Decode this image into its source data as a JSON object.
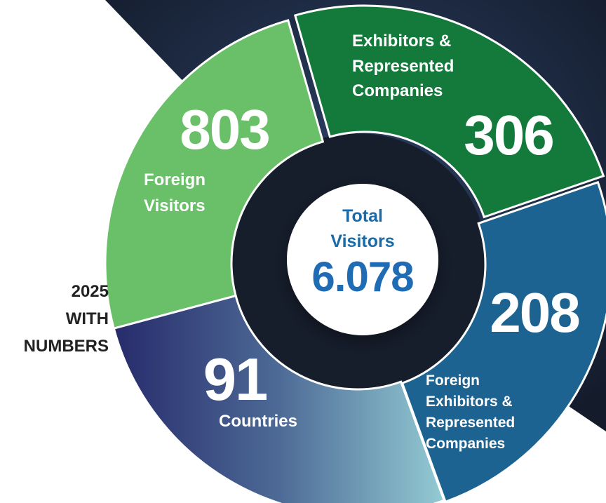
{
  "side_label": [
    "2025",
    "WITH",
    "NUMBERS"
  ],
  "center": {
    "title": [
      "Total",
      "Visitors"
    ],
    "value": "6.078"
  },
  "segments": [
    {
      "value": "803",
      "label": [
        "Foreign",
        "Visitors"
      ]
    },
    {
      "value": "306",
      "label": [
        "Exhibitors &",
        "Represented",
        "Companies"
      ]
    },
    {
      "value": "208",
      "label": [
        "Foreign",
        "Exhibitors &",
        "Represented",
        "Companies"
      ]
    },
    {
      "value": "91",
      "label": [
        "Countries"
      ]
    }
  ]
}
